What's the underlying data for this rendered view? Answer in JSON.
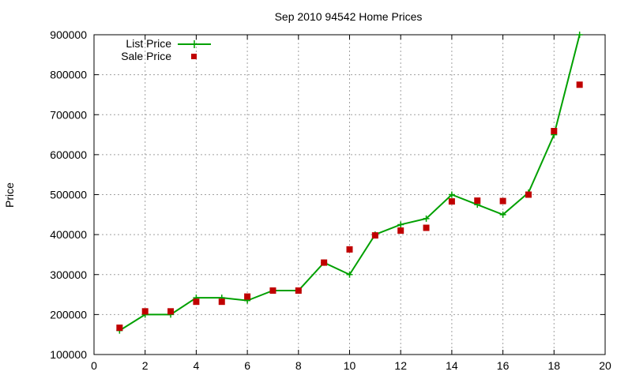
{
  "chart_data": {
    "type": "line",
    "title": "Sep 2010 94542 Home Prices",
    "xlabel": "",
    "ylabel": "Price",
    "xlim": [
      0,
      20
    ],
    "ylim": [
      100000,
      900000
    ],
    "x_ticks": [
      "0",
      "2",
      "4",
      "6",
      "8",
      "10",
      "12",
      "14",
      "16",
      "18",
      "20"
    ],
    "y_ticks": [
      "100000",
      "200000",
      "300000",
      "400000",
      "500000",
      "600000",
      "700000",
      "800000",
      "900000"
    ],
    "grid": true,
    "legend_position": "top-left",
    "series": [
      {
        "name": "List Price",
        "style": "line+plus",
        "color": "#00a000",
        "x": [
          1,
          2,
          3,
          4,
          5,
          6,
          7,
          8,
          9,
          10,
          11,
          12,
          13,
          14,
          15,
          16,
          17,
          18,
          19
        ],
        "values": [
          160000,
          200000,
          200000,
          242000,
          242000,
          235000,
          260000,
          260000,
          330000,
          300000,
          400000,
          425000,
          440000,
          500000,
          475000,
          450000,
          505000,
          650000,
          900000
        ]
      },
      {
        "name": "Sale Price",
        "style": "square-points",
        "color": "#c00000",
        "x": [
          1,
          2,
          3,
          4,
          5,
          6,
          7,
          8,
          9,
          10,
          11,
          12,
          13,
          14,
          15,
          16,
          17,
          18,
          19
        ],
        "values": [
          167000,
          208000,
          208000,
          232000,
          232000,
          245000,
          260000,
          260000,
          330000,
          363000,
          398000,
          410000,
          417000,
          483000,
          485000,
          484000,
          500000,
          659000,
          775000
        ]
      }
    ]
  }
}
